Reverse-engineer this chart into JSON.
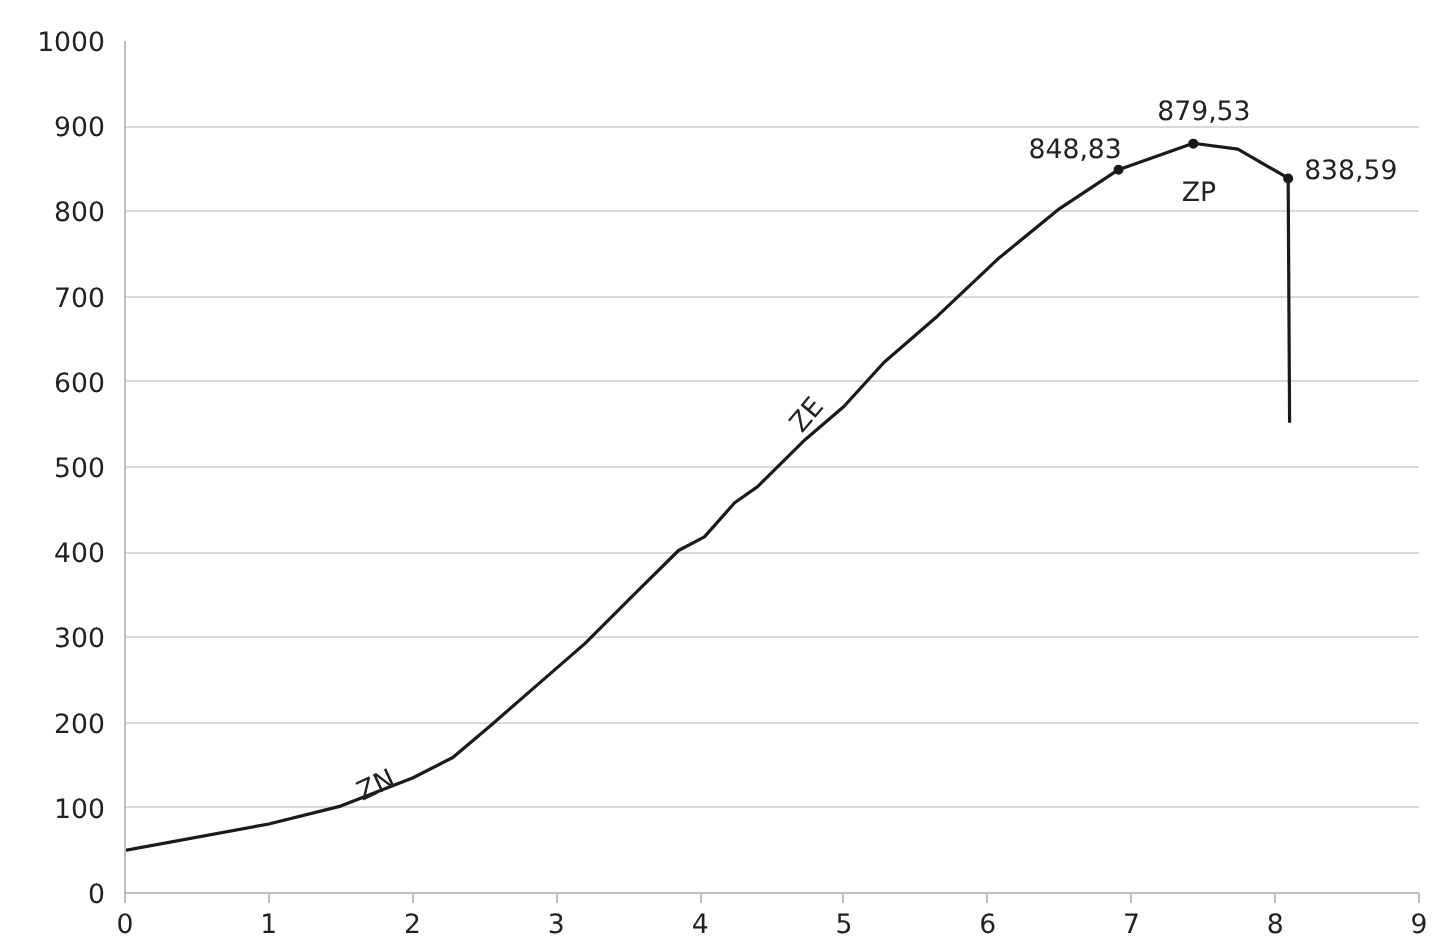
{
  "chart_data": {
    "type": "line",
    "series": [
      {
        "color": "#1a1a1a",
        "x": [
          0,
          1,
          1.5,
          2,
          2.28,
          2.56,
          2.88,
          3.2,
          3.52,
          3.85,
          4.03,
          4.24,
          4.4,
          4.73,
          5.0,
          5.28,
          5.65,
          6.07,
          6.49,
          6.91,
          7.43,
          7.74,
          8.09,
          8.1
        ],
        "values": [
          50,
          81,
          102,
          135,
          159,
          199,
          246,
          293,
          347,
          402,
          418,
          458,
          477,
          532,
          571,
          623,
          677,
          744,
          802,
          849,
          880,
          873,
          839,
          552
        ]
      },
      {
        "type": "scatter",
        "color": "#1a1a1a",
        "marker": "circle",
        "x": [
          6.91,
          7.43,
          8.09
        ],
        "values": [
          848.83,
          879.53,
          838.59
        ],
        "value_labels": [
          "848,83",
          "879,53",
          "838,59"
        ]
      }
    ],
    "annotations": [
      {
        "text": "ZN",
        "x": 1.75,
        "y": 125
      },
      "ZE",
      "ZP"
    ],
    "xlim": [
      0,
      9
    ],
    "xticks": [
      0,
      1,
      2,
      3,
      4,
      5,
      6,
      7,
      8,
      9
    ],
    "ylim": [
      0,
      1000
    ],
    "yticks": [
      0,
      100,
      200,
      300,
      400,
      500,
      600,
      700,
      800,
      900,
      1000
    ],
    "grid": "y"
  }
}
